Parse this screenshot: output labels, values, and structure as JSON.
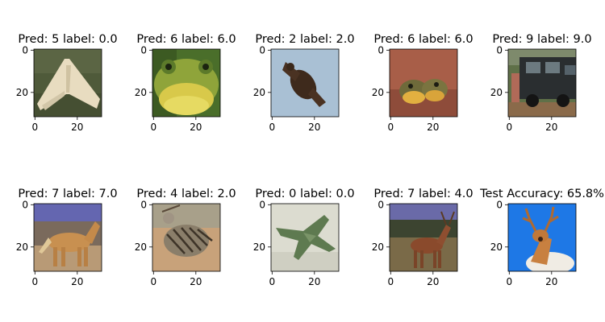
{
  "chart_data": [
    {
      "type": "image",
      "title": "Pred: 5 label: 0.0",
      "subject": "airplane",
      "xticks": [
        "0",
        "20"
      ],
      "yticks": [
        "0",
        "20"
      ]
    },
    {
      "type": "image",
      "title": "Pred: 6 label: 6.0",
      "subject": "frog",
      "xticks": [
        "0",
        "20"
      ],
      "yticks": [
        "0",
        "20"
      ]
    },
    {
      "type": "image",
      "title": "Pred: 2 label: 2.0",
      "subject": "bird",
      "xticks": [
        "0",
        "20"
      ],
      "yticks": [
        "0",
        "20"
      ]
    },
    {
      "type": "image",
      "title": "Pred: 6 label: 6.0",
      "subject": "frog",
      "xticks": [
        "0",
        "20"
      ],
      "yticks": [
        "0",
        "20"
      ]
    },
    {
      "type": "image",
      "title": "Pred: 9 label: 9.0",
      "subject": "truck",
      "xticks": [
        "0",
        "20"
      ],
      "yticks": [
        "0",
        "20"
      ]
    },
    {
      "type": "image",
      "title": "Pred: 7 label: 7.0",
      "subject": "horse",
      "xticks": [
        "0",
        "20"
      ],
      "yticks": [
        "0",
        "20"
      ]
    },
    {
      "type": "image",
      "title": "Pred: 4 label: 2.0",
      "subject": "bird",
      "xticks": [
        "0",
        "20"
      ],
      "yticks": [
        "0",
        "20"
      ]
    },
    {
      "type": "image",
      "title": "Pred: 0 label: 0.0",
      "subject": "airplane",
      "xticks": [
        "0",
        "20"
      ],
      "yticks": [
        "0",
        "20"
      ]
    },
    {
      "type": "image",
      "title": "Pred: 7 label: 4.0",
      "subject": "deer",
      "xticks": [
        "0",
        "20"
      ],
      "yticks": [
        "0",
        "20"
      ]
    },
    {
      "type": "image",
      "title": "Test Accuracy: 65.8%",
      "subject": "deer",
      "xticks": [
        "0",
        "20"
      ],
      "yticks": [
        "0",
        "20"
      ]
    }
  ]
}
